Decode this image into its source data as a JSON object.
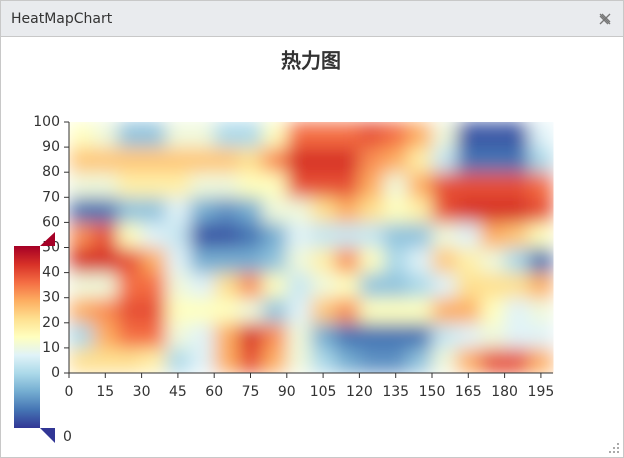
{
  "window": {
    "title": "HeatMapChart"
  },
  "chart_data": {
    "type": "heatmap",
    "title": "热力图",
    "x": [
      5,
      15,
      25,
      35,
      45,
      55,
      65,
      75,
      85,
      95,
      105,
      115,
      125,
      135,
      145,
      155,
      165,
      175,
      185,
      195
    ],
    "y": [
      5,
      15,
      25,
      35,
      45,
      55,
      65,
      75,
      85,
      95
    ],
    "values": [
      [
        0.6,
        0.6,
        0.6,
        0.55,
        0.3,
        0.4,
        0.7,
        0.85,
        0.7,
        0.45,
        0.3,
        0.2,
        0.15,
        0.15,
        0.25,
        0.45,
        0.7,
        0.85,
        0.85,
        0.7
      ],
      [
        0.3,
        0.7,
        0.8,
        0.8,
        0.45,
        0.4,
        0.7,
        0.9,
        0.75,
        0.45,
        0.2,
        0.1,
        0.1,
        0.1,
        0.1,
        0.35,
        0.4,
        0.45,
        0.4,
        0.4
      ],
      [
        0.7,
        0.75,
        0.85,
        0.85,
        0.5,
        0.5,
        0.5,
        0.45,
        0.25,
        0.4,
        0.65,
        0.75,
        0.5,
        0.5,
        0.5,
        0.7,
        0.7,
        0.5,
        0.4,
        0.45
      ],
      [
        0.45,
        0.45,
        0.8,
        0.8,
        0.45,
        0.4,
        0.6,
        0.75,
        0.5,
        0.35,
        0.45,
        0.5,
        0.25,
        0.25,
        0.3,
        0.4,
        0.6,
        0.6,
        0.6,
        0.7
      ],
      [
        0.9,
        0.9,
        0.85,
        0.7,
        0.4,
        0.2,
        0.2,
        0.2,
        0.25,
        0.45,
        0.55,
        0.75,
        0.5,
        0.3,
        0.4,
        0.65,
        0.55,
        0.45,
        0.3,
        0.1
      ],
      [
        0.75,
        0.85,
        0.5,
        0.4,
        0.35,
        0.05,
        0.05,
        0.1,
        0.2,
        0.4,
        0.35,
        0.35,
        0.35,
        0.25,
        0.25,
        0.45,
        0.4,
        0.7,
        0.65,
        0.5
      ],
      [
        0.1,
        0.1,
        0.25,
        0.25,
        0.4,
        0.2,
        0.15,
        0.2,
        0.45,
        0.45,
        0.6,
        0.7,
        0.6,
        0.5,
        0.55,
        0.85,
        0.9,
        0.9,
        0.9,
        0.85
      ],
      [
        0.45,
        0.45,
        0.55,
        0.55,
        0.55,
        0.45,
        0.45,
        0.5,
        0.5,
        0.85,
        0.85,
        0.85,
        0.7,
        0.45,
        0.7,
        0.85,
        0.85,
        0.85,
        0.85,
        0.8
      ],
      [
        0.65,
        0.65,
        0.65,
        0.65,
        0.65,
        0.65,
        0.65,
        0.6,
        0.75,
        0.9,
        0.9,
        0.9,
        0.75,
        0.7,
        0.55,
        0.35,
        0.1,
        0.1,
        0.1,
        0.3
      ],
      [
        0.5,
        0.45,
        0.25,
        0.25,
        0.45,
        0.45,
        0.3,
        0.3,
        0.5,
        0.8,
        0.8,
        0.8,
        0.85,
        0.8,
        0.7,
        0.45,
        0.05,
        0.05,
        0.05,
        0.4
      ]
    ],
    "xlim": [
      0,
      200
    ],
    "ylim": [
      0,
      100
    ],
    "xticks": [
      0,
      15,
      30,
      45,
      60,
      75,
      90,
      105,
      120,
      135,
      150,
      165,
      180,
      195
    ],
    "yticks": [
      0,
      10,
      20,
      30,
      40,
      50,
      60,
      70,
      80,
      90,
      100
    ],
    "visual_range": [
      0,
      1
    ],
    "visual_colors": [
      "#313695",
      "#4575b4",
      "#74add1",
      "#abd9e9",
      "#e0f3f8",
      "#ffffbf",
      "#fee090",
      "#fdae61",
      "#f46d43",
      "#d73027",
      "#a50026"
    ]
  }
}
